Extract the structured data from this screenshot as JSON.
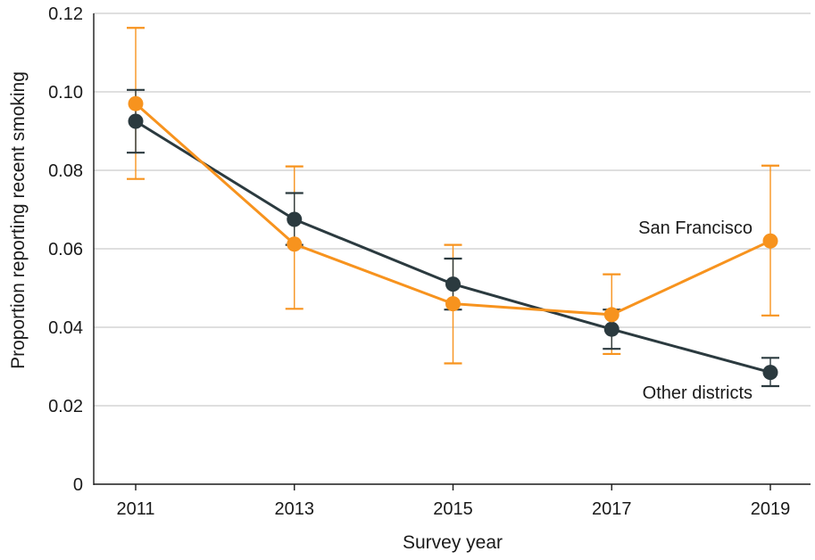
{
  "chart_data": {
    "type": "line",
    "title": "",
    "xlabel": "Survey year",
    "ylabel": "Proportion reporting recent smoking",
    "categories": [
      "2011",
      "2013",
      "2015",
      "2017",
      "2019"
    ],
    "ylim": [
      0,
      0.12
    ],
    "yticks": [
      0,
      0.02,
      0.04,
      0.06,
      0.08,
      0.1,
      0.12
    ],
    "ytick_labels": [
      "0",
      "0.02",
      "0.04",
      "0.06",
      "0.08",
      "0.10",
      "0.12"
    ],
    "grid": "horizontal",
    "series": [
      {
        "name": "Other districts",
        "color": "#2b3a3f",
        "values": [
          0.0925,
          0.0675,
          0.051,
          0.0395,
          0.0285
        ],
        "lower": [
          0.0845,
          0.061,
          0.0445,
          0.0345,
          0.025
        ],
        "upper": [
          0.1005,
          0.0742,
          0.0575,
          0.0445,
          0.0322
        ]
      },
      {
        "name": "San Francisco",
        "color": "#f7931e",
        "values": [
          0.097,
          0.0612,
          0.046,
          0.0432,
          0.062
        ],
        "lower": [
          0.0778,
          0.0447,
          0.0308,
          0.0332,
          0.043
        ],
        "upper": [
          0.1163,
          0.081,
          0.061,
          0.0535,
          0.0812
        ]
      }
    ]
  }
}
